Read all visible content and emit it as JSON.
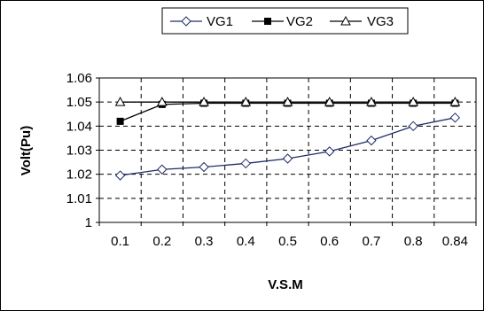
{
  "chart_data": {
    "type": "line",
    "categories": [
      "0.1",
      "0.2",
      "0.3",
      "0.4",
      "0.5",
      "0.6",
      "0.7",
      "0.8",
      "0.84"
    ],
    "series": [
      {
        "name": "VG1",
        "marker": "diamond",
        "color": "#1f2d6b",
        "values": [
          1.0195,
          1.022,
          1.023,
          1.0245,
          1.0265,
          1.0295,
          1.034,
          1.04,
          1.0435
        ]
      },
      {
        "name": "VG2",
        "marker": "square",
        "color": "#000000",
        "values": [
          1.042,
          1.049,
          1.0495,
          1.0495,
          1.0495,
          1.0495,
          1.0495,
          1.0495,
          1.0495
        ]
      },
      {
        "name": "VG3",
        "marker": "triangle",
        "color": "#000000",
        "values": [
          1.05,
          1.05,
          1.05,
          1.05,
          1.05,
          1.05,
          1.05,
          1.05,
          1.05
        ]
      }
    ],
    "ylim": [
      1,
      1.06
    ],
    "yticks": [
      "1",
      "1.01",
      "1.02",
      "1.03",
      "1.04",
      "1.05",
      "1.06"
    ],
    "xlabel": "V.S.M",
    "ylabel": "Volt(Pu)",
    "grid": true,
    "legend": "top-right"
  }
}
